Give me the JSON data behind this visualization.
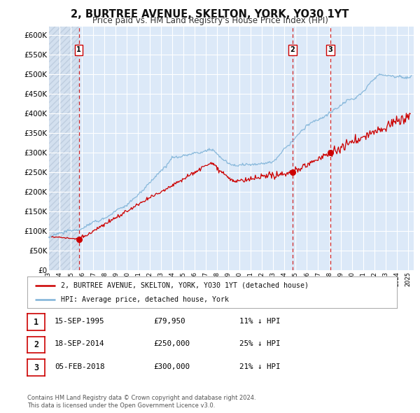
{
  "title": "2, BURTREE AVENUE, SKELTON, YORK, YO30 1YT",
  "subtitle": "Price paid vs. HM Land Registry's House Price Index (HPI)",
  "legend_label_red": "2, BURTREE AVENUE, SKELTON, YORK, YO30 1YT (detached house)",
  "legend_label_blue": "HPI: Average price, detached house, York",
  "footer_line1": "Contains HM Land Registry data © Crown copyright and database right 2024.",
  "footer_line2": "This data is licensed under the Open Government Licence v3.0.",
  "transactions": [
    {
      "num": "1",
      "date": "15-SEP-1995",
      "price": "£79,950",
      "hpi": "11% ↓ HPI",
      "year": 1995.71
    },
    {
      "num": "2",
      "date": "18-SEP-2014",
      "price": "£250,000",
      "hpi": "25% ↓ HPI",
      "year": 2014.71
    },
    {
      "num": "3",
      "date": "05-FEB-2018",
      "price": "£300,000",
      "hpi": "21% ↓ HPI",
      "year": 2018.09
    }
  ],
  "transaction_values": [
    79950,
    250000,
    300000
  ],
  "transaction_years": [
    1995.71,
    2014.71,
    2018.09
  ],
  "xlim": [
    1993.0,
    2025.5
  ],
  "ylim": [
    0,
    620000
  ],
  "yticks": [
    0,
    50000,
    100000,
    150000,
    200000,
    250000,
    300000,
    350000,
    400000,
    450000,
    500000,
    550000,
    600000
  ],
  "ytick_labels": [
    "£0",
    "£50K",
    "£100K",
    "£150K",
    "£200K",
    "£250K",
    "£300K",
    "£350K",
    "£400K",
    "£450K",
    "£500K",
    "£550K",
    "£600K"
  ],
  "xticks": [
    1993,
    1994,
    1995,
    1996,
    1997,
    1998,
    1999,
    2000,
    2001,
    2002,
    2003,
    2004,
    2005,
    2006,
    2007,
    2008,
    2009,
    2010,
    2011,
    2012,
    2013,
    2014,
    2015,
    2016,
    2017,
    2018,
    2019,
    2020,
    2021,
    2022,
    2023,
    2024,
    2025
  ],
  "background_color": "#dce9f8",
  "line_color_red": "#cc0000",
  "line_color_blue": "#7fb3d8",
  "dot_color_red": "#cc0000",
  "vline_color": "#cc0000",
  "grid_color": "#ffffff",
  "hatch_color": "#c8d8e8",
  "title_fontsize": 10.5,
  "subtitle_fontsize": 8.5
}
